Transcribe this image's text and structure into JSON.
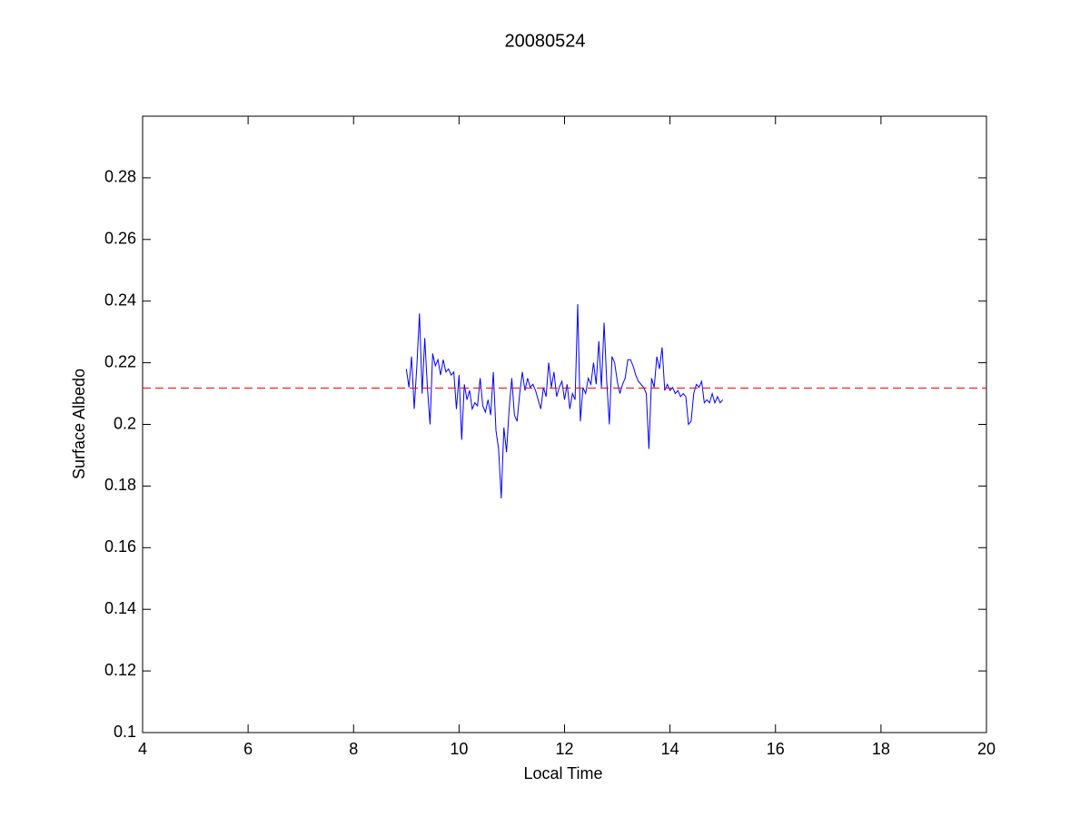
{
  "chart_data": {
    "type": "line",
    "title": "20080524",
    "xlabel": "Local Time",
    "ylabel": "Surface Albedo",
    "x": [
      9,
      9.05,
      9.1,
      9.15,
      9.2,
      9.25,
      9.3,
      9.35,
      9.4,
      9.45,
      9.5,
      9.55,
      9.6,
      9.65,
      9.7,
      9.75,
      9.8,
      9.85,
      9.9,
      9.95,
      10,
      10.05,
      10.1,
      10.15,
      10.2,
      10.25,
      10.3,
      10.35,
      10.4,
      10.45,
      10.5,
      10.55,
      10.6,
      10.65,
      10.7,
      10.75,
      10.8,
      10.85,
      10.9,
      10.95,
      11,
      11.05,
      11.1,
      11.15,
      11.2,
      11.25,
      11.3,
      11.35,
      11.4,
      11.45,
      11.5,
      11.55,
      11.6,
      11.65,
      11.7,
      11.75,
      11.8,
      11.85,
      11.9,
      11.95,
      12,
      12.05,
      12.1,
      12.15,
      12.2,
      12.25,
      12.3,
      12.35,
      12.4,
      12.45,
      12.5,
      12.55,
      12.6,
      12.65,
      12.7,
      12.75,
      12.8,
      12.85,
      12.9,
      12.95,
      13,
      13.05,
      13.1,
      13.15,
      13.2,
      13.25,
      13.3,
      13.35,
      13.4,
      13.45,
      13.5,
      13.55,
      13.6,
      13.65,
      13.7,
      13.75,
      13.8,
      13.85,
      13.9,
      13.95,
      14,
      14.05,
      14.1,
      14.15,
      14.2,
      14.25,
      14.3,
      14.35,
      14.4,
      14.45,
      14.5,
      14.55,
      14.6,
      14.65,
      14.7,
      14.75,
      14.8,
      14.85,
      14.9,
      14.95,
      15
    ],
    "series": [
      {
        "color": "#0000ff",
        "values": [
          0.218,
          0.212,
          0.222,
          0.205,
          0.219,
          0.236,
          0.21,
          0.228,
          0.212,
          0.2,
          0.223,
          0.219,
          0.221,
          0.216,
          0.221,
          0.217,
          0.218,
          0.216,
          0.217,
          0.205,
          0.216,
          0.195,
          0.213,
          0.208,
          0.211,
          0.205,
          0.207,
          0.206,
          0.215,
          0.206,
          0.204,
          0.208,
          0.203,
          0.217,
          0.198,
          0.192,
          0.176,
          0.199,
          0.191,
          0.205,
          0.215,
          0.203,
          0.201,
          0.21,
          0.217,
          0.211,
          0.215,
          0.212,
          0.213,
          0.211,
          0.208,
          0.205,
          0.212,
          0.209,
          0.22,
          0.212,
          0.217,
          0.209,
          0.212,
          0.214,
          0.208,
          0.213,
          0.205,
          0.21,
          0.208,
          0.239,
          0.201,
          0.212,
          0.21,
          0.215,
          0.213,
          0.22,
          0.213,
          0.227,
          0.212,
          0.233,
          0.214,
          0.2,
          0.222,
          0.22,
          0.214,
          0.21,
          0.213,
          0.215,
          0.221,
          0.221,
          0.219,
          0.216,
          0.214,
          0.213,
          0.212,
          0.21,
          0.192,
          0.215,
          0.212,
          0.222,
          0.218,
          0.225,
          0.211,
          0.213,
          0.211,
          0.212,
          0.21,
          0.211,
          0.209,
          0.21,
          0.209,
          0.2,
          0.201,
          0.21,
          0.213,
          0.212,
          0.214,
          0.207,
          0.208,
          0.207,
          0.21,
          0.207,
          0.209,
          0.207,
          0.208
        ]
      }
    ],
    "hline": {
      "value": 0.2118,
      "color": "#ff0000",
      "style": "dashed"
    },
    "xlim": [
      4,
      20
    ],
    "xticks": [
      4,
      6,
      8,
      10,
      12,
      14,
      16,
      18,
      20
    ],
    "ylim": [
      0.1,
      0.3
    ],
    "yticks": [
      0.1,
      0.12,
      0.14,
      0.16,
      0.18,
      0.2,
      0.22,
      0.24,
      0.26,
      0.28
    ],
    "grid": false
  }
}
